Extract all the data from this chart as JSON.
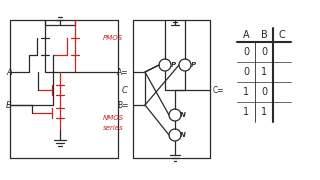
{
  "bg_color": "#ffffff",
  "dark": "#2a2a2a",
  "red": "#cc2222",
  "table_headers": [
    "A",
    "B",
    "C"
  ],
  "table_rows": [
    [
      "0",
      "0",
      ""
    ],
    [
      "0",
      "1",
      ""
    ],
    [
      "1",
      "0",
      ""
    ],
    [
      "1",
      "1",
      ""
    ]
  ],
  "pmos_label": "PMOS",
  "nmos_label": "NMOS",
  "series_label": "series"
}
